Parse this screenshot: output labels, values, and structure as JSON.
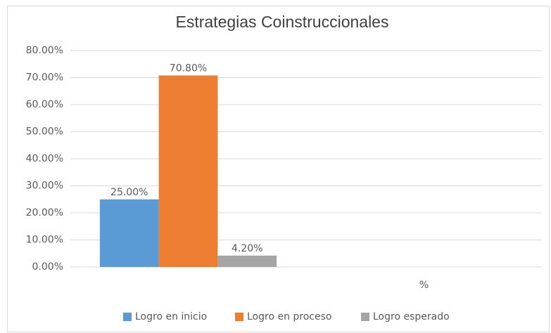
{
  "chart_data": {
    "type": "bar",
    "title": "Estrategias Coinstruccionales",
    "categories": [
      null,
      "%"
    ],
    "series": [
      {
        "name": "Logro en inicio",
        "color": "#5b9bd5",
        "values": [
          25,
          null
        ],
        "value_labels": [
          "25.00%",
          null
        ]
      },
      {
        "name": "Logro en proceso",
        "color": "#ed7d31",
        "values": [
          70.8,
          null
        ],
        "value_labels": [
          "70.80%",
          null
        ]
      },
      {
        "name": "Logro esperado",
        "color": "#a5a5a5",
        "values": [
          4.2,
          null
        ],
        "value_labels": [
          "4.20%",
          null
        ]
      }
    ],
    "ylim": [
      0,
      80
    ],
    "yticks": [
      {
        "value": 0,
        "label": "0.00%"
      },
      {
        "value": 10,
        "label": "10.00%"
      },
      {
        "value": 20,
        "label": "20.00%"
      },
      {
        "value": 30,
        "label": "30.00%"
      },
      {
        "value": 40,
        "label": "40.00%"
      },
      {
        "value": 50,
        "label": "50.00%"
      },
      {
        "value": 60,
        "label": "60.00%"
      },
      {
        "value": 70,
        "label": "70.00%"
      },
      {
        "value": 80,
        "label": "80.00%"
      }
    ],
    "grid": true,
    "legend": "bottom"
  }
}
